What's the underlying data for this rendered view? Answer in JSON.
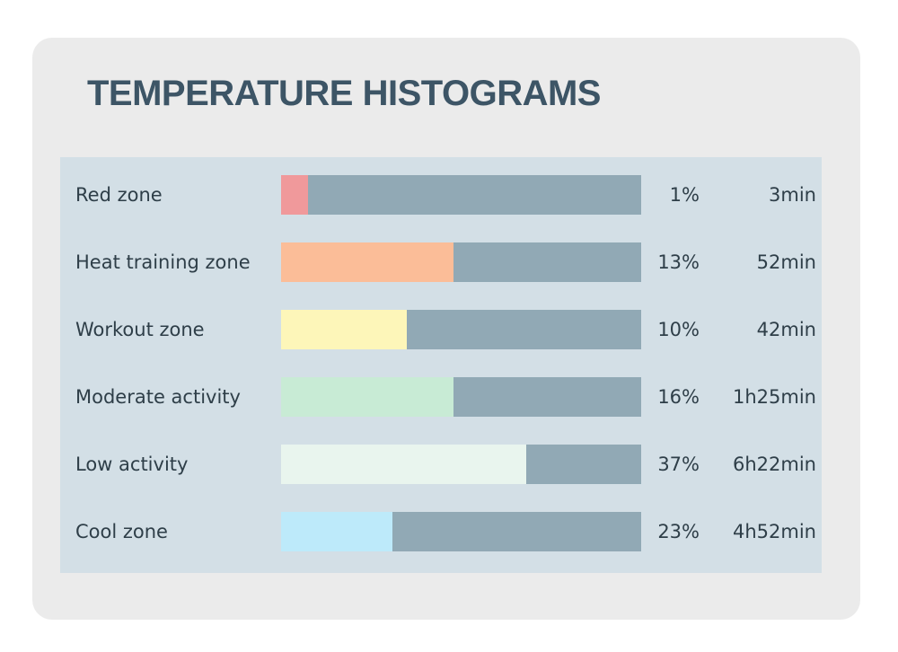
{
  "header": {
    "title": "TEMPERATURE HISTOGRAMS"
  },
  "rows": [
    {
      "label": "Red zone",
      "percent": "1%",
      "duration": "3min",
      "fill": 0.075,
      "color": "#f0999b"
    },
    {
      "label": "Heat training zone",
      "percent": "13%",
      "duration": "52min",
      "fill": 0.48,
      "color": "#fbbd98"
    },
    {
      "label": "Workout zone",
      "percent": "10%",
      "duration": "42min",
      "fill": 0.35,
      "color": "#fdf6b9"
    },
    {
      "label": "Moderate activity",
      "percent": "16%",
      "duration": "1h25min",
      "fill": 0.48,
      "color": "#c8ebd5"
    },
    {
      "label": "Low activity",
      "percent": "37%",
      "duration": "6h22min",
      "fill": 0.68,
      "color": "#e9f5ee"
    },
    {
      "label": "Cool zone",
      "percent": "23%",
      "duration": "4h52min",
      "fill": 0.31,
      "color": "#bdeafa"
    }
  ]
}
